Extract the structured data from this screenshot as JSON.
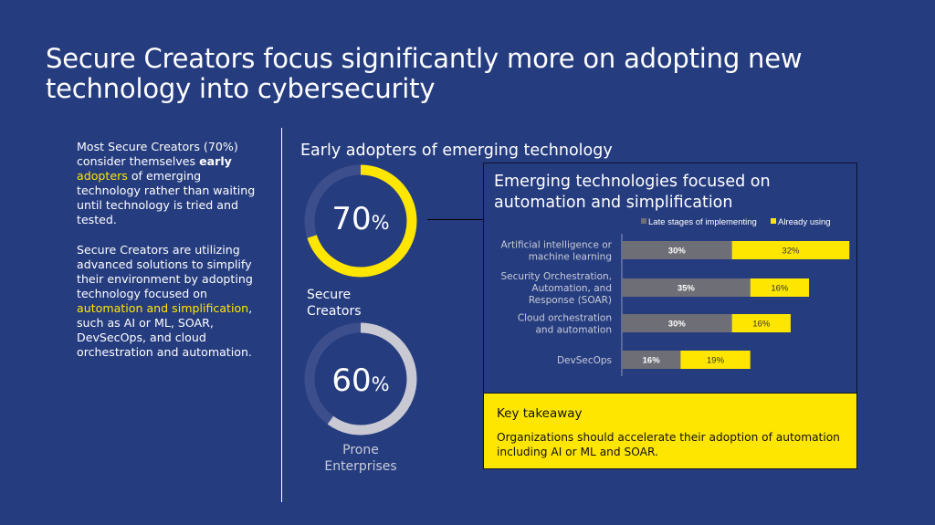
{
  "title": "Secure Creators focus significantly more on adopting new technology into cybersecurity",
  "left_column": {
    "p1_before": "Most Secure Creators (70%) consider themselves ",
    "p1_bold": "early",
    "p1_highlight": "adopters",
    "p1_after": " of emerging technology rather than waiting until technology is tried and tested.",
    "p2_before": "Secure Creators are utilizing advanced solutions to simplify their environment by adopting technology focused on ",
    "p2_highlight": "automation and simplification",
    "p2_after": ", such as AI or ML, SOAR, DevSecOps, and cloud orchestration and automation."
  },
  "early_adopters": {
    "heading": "Early adopters of emerging technology",
    "donuts": [
      {
        "value": "70",
        "unit": "%",
        "fraction": 0.7,
        "color": "#ffe600",
        "track": "#3c4f8c",
        "caption_lines": [
          "Secure",
          "Creators"
        ]
      },
      {
        "value": "60",
        "unit": "%",
        "fraction": 0.6,
        "color": "#c9c9d3",
        "track": "#3c4f8c",
        "caption_lines": [
          "Prone",
          "Enterprises"
        ]
      }
    ]
  },
  "chart_data": {
    "type": "bar",
    "stacked": true,
    "orientation": "horizontal",
    "title": "Emerging technologies focused on automation and simplification",
    "categories": [
      [
        "Artificial intelligence or",
        "machine learning"
      ],
      [
        "Security Orchestration,",
        "Automation, and",
        "Response (SOAR)"
      ],
      [
        "Cloud orchestration",
        "and automation"
      ],
      [
        "DevSecOps"
      ]
    ],
    "series": [
      {
        "name": "Late stages of implementing",
        "values": [
          30,
          35,
          30,
          16
        ],
        "labels": [
          "30%",
          "35%",
          "30%",
          "16%"
        ],
        "color": "#6e6e76"
      },
      {
        "name": "Already using",
        "values": [
          32,
          16,
          16,
          19
        ],
        "labels": [
          "32%",
          "16%",
          "16%",
          "19%"
        ],
        "color": "#ffe600"
      }
    ],
    "legend_position": "top-right"
  },
  "takeaway": {
    "heading": "Key takeaway",
    "body": "Organizations should accelerate their adoption of automation including AI or ML and SOAR."
  },
  "colors": {
    "background": "#253c7f",
    "accent": "#ffe600",
    "bar_gray": "#6e6e76",
    "label_gray": "#c8cbd8"
  }
}
